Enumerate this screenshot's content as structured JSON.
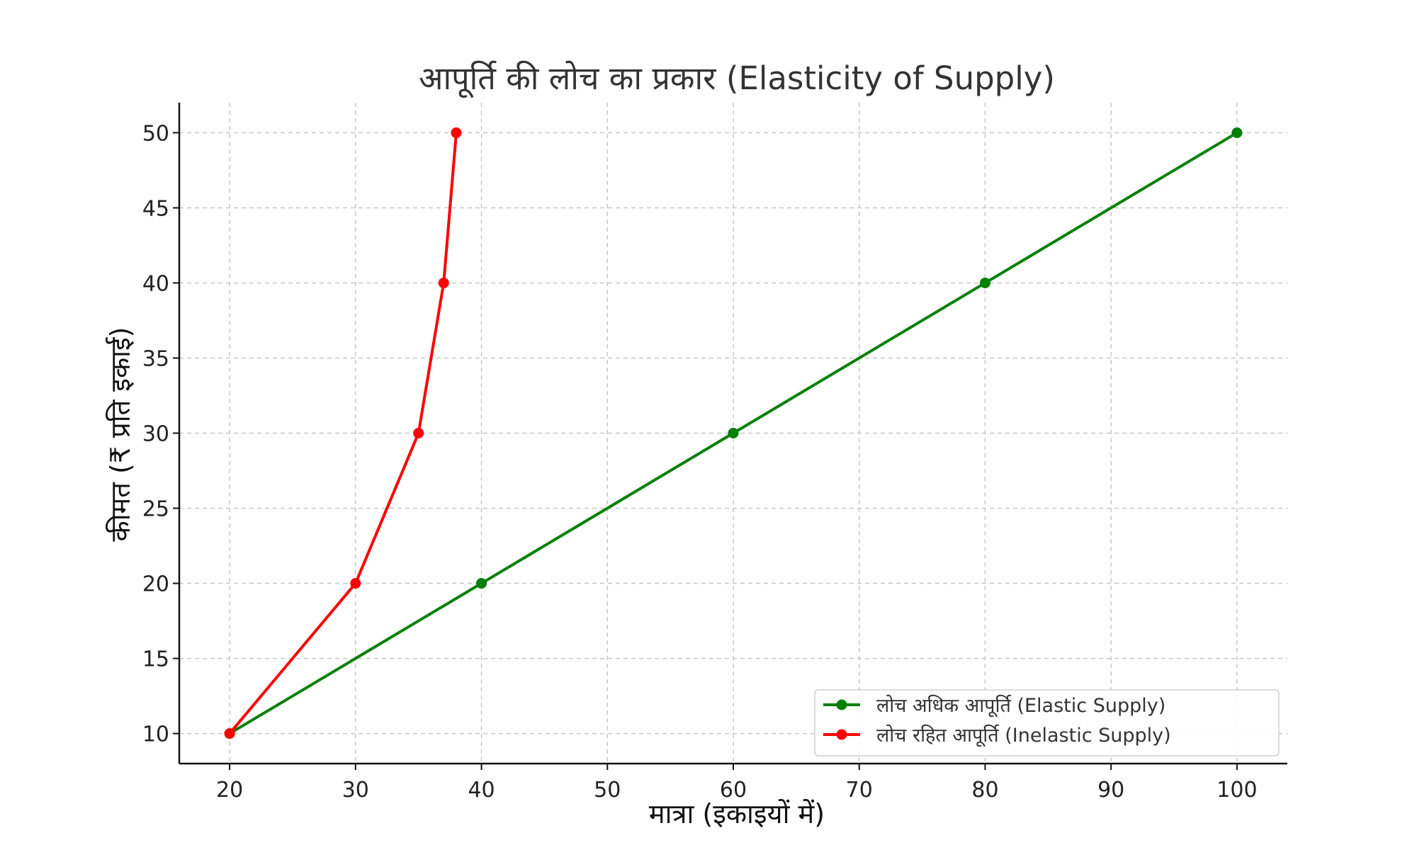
{
  "chart_data": {
    "type": "line",
    "title": "आपूर्ति की लोच का प्रकार (Elasticity of Supply)",
    "xlabel": "मात्रा (इकाइयों में)",
    "ylabel": "कीमत (₹ प्रति इकाई)",
    "xlim": [
      16,
      104
    ],
    "ylim": [
      8,
      52
    ],
    "xticks": [
      "20",
      "30",
      "40",
      "50",
      "60",
      "70",
      "80",
      "90",
      "100"
    ],
    "yticks": [
      "10",
      "15",
      "20",
      "25",
      "30",
      "35",
      "40",
      "45",
      "50"
    ],
    "grid": true,
    "legend_position": "lower right",
    "series": [
      {
        "name": "लोच अधिक आपूर्ति (Elastic Supply)",
        "color": "#008000",
        "marker": "circle",
        "points": [
          [
            20,
            10
          ],
          [
            40,
            20
          ],
          [
            60,
            30
          ],
          [
            80,
            40
          ],
          [
            100,
            50
          ]
        ]
      },
      {
        "name": "लोच रहित आपूर्ति (Inelastic Supply)",
        "color": "#ff0000",
        "marker": "circle",
        "points": [
          [
            20,
            10
          ],
          [
            30,
            20
          ],
          [
            35,
            30
          ],
          [
            37,
            40
          ],
          [
            38,
            50
          ]
        ]
      }
    ]
  }
}
